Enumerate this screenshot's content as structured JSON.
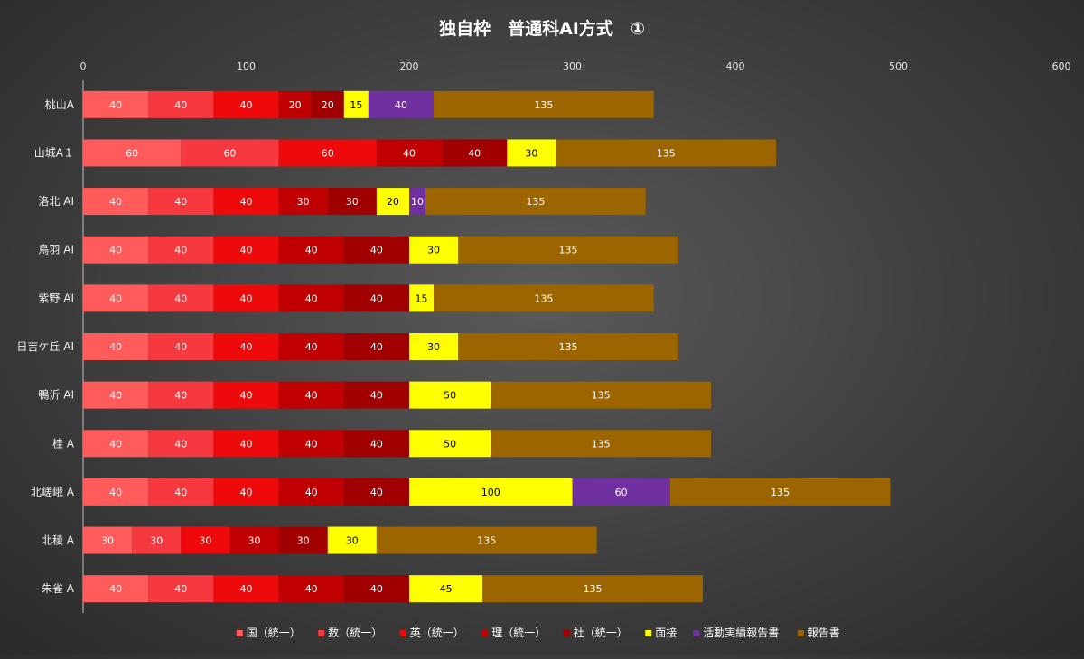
{
  "chart_data": {
    "type": "bar",
    "orientation": "horizontal",
    "stacked": true,
    "title": "独自枠　普通科AI方式　①",
    "xlabel": "",
    "ylabel": "",
    "xlim": [
      0,
      600
    ],
    "x_ticks": [
      "0",
      "100",
      "200",
      "300",
      "400",
      "500",
      "600"
    ],
    "grid": false,
    "legend_position": "bottom",
    "categories": [
      "桃山A",
      "山城A１",
      "洛北 AI",
      "鳥羽 AI",
      "紫野 AI",
      "日吉ケ丘 AI",
      "鴨沂 AI",
      "桂 A",
      "北嵯峨 A",
      "北稜 A",
      "朱雀 A"
    ],
    "series": [
      {
        "name": "国（統一）",
        "color": "#ff5b5b",
        "label_color": "#ffffff",
        "values": [
          40,
          60,
          40,
          40,
          40,
          40,
          40,
          40,
          40,
          30,
          40
        ]
      },
      {
        "name": "数（統一）",
        "color": "#f5393f",
        "label_color": "#ffffff",
        "values": [
          40,
          60,
          40,
          40,
          40,
          40,
          40,
          40,
          40,
          30,
          40
        ]
      },
      {
        "name": "英（統一）",
        "color": "#ee0a0a",
        "label_color": "#ffffff",
        "values": [
          40,
          60,
          40,
          40,
          40,
          40,
          40,
          40,
          40,
          30,
          40
        ]
      },
      {
        "name": "理（統一）",
        "color": "#c00000",
        "label_color": "#ffffff",
        "values": [
          20,
          40,
          30,
          40,
          40,
          40,
          40,
          40,
          40,
          30,
          40
        ]
      },
      {
        "name": "社（統一）",
        "color": "#a00000",
        "label_color": "#ffffff",
        "values": [
          20,
          40,
          30,
          40,
          40,
          40,
          40,
          40,
          40,
          30,
          40
        ]
      },
      {
        "name": "面接",
        "color": "#ffff00",
        "label_color": "#000000",
        "values": [
          15,
          30,
          20,
          30,
          15,
          30,
          50,
          50,
          100,
          30,
          45
        ]
      },
      {
        "name": "活動実績報告書",
        "color": "#7030a0",
        "label_color": "#ffffff",
        "values": [
          40,
          null,
          10,
          null,
          null,
          null,
          null,
          null,
          60,
          null,
          null
        ]
      },
      {
        "name": "報告書",
        "color": "#9c6500",
        "label_color": "#ffffff",
        "values": [
          135,
          135,
          135,
          135,
          135,
          135,
          135,
          135,
          135,
          135,
          135
        ]
      }
    ]
  }
}
